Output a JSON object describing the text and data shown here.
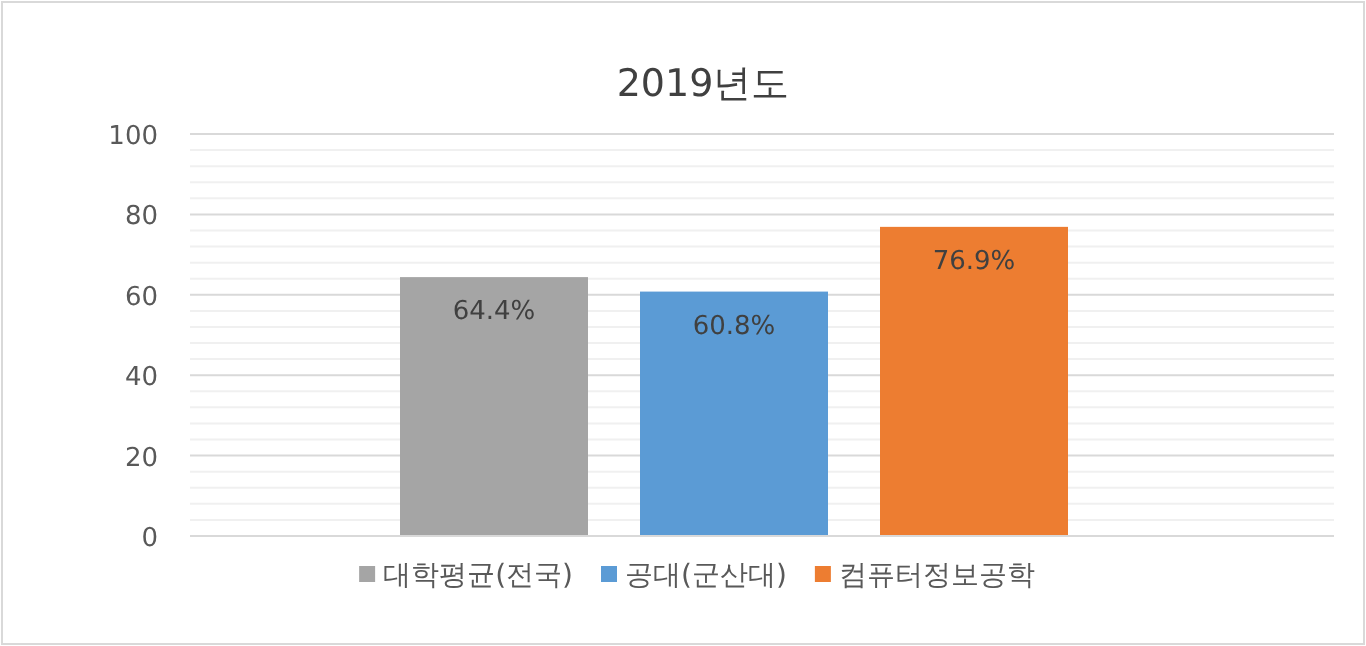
{
  "chart_data": {
    "type": "bar",
    "title": "2019년도",
    "categories": [
      null
    ],
    "series": [
      {
        "name": "대학평균(전국)",
        "color": "#a5a5a5",
        "values": [
          64.4
        ],
        "value_labels": [
          "64.4%"
        ]
      },
      {
        "name": "공대(군산대)",
        "color": "#5b9bd5",
        "values": [
          60.8
        ],
        "value_labels": [
          "60.8%"
        ]
      },
      {
        "name": "컴퓨터정보공학",
        "color": "#ed7d31",
        "values": [
          76.9
        ],
        "value_labels": [
          "76.9%"
        ]
      }
    ],
    "ylim": [
      0,
      100
    ],
    "yticks": [
      0,
      20,
      40,
      60,
      80,
      100
    ],
    "grid": "y",
    "legend": "bottom"
  }
}
